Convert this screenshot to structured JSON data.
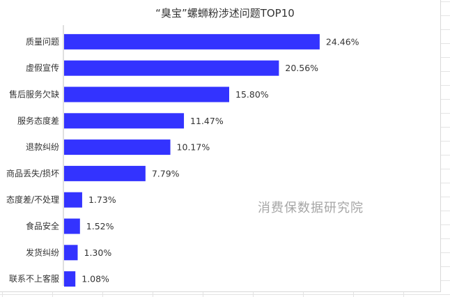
{
  "chart_data": {
    "type": "bar",
    "orientation": "horizontal",
    "title": "“臭宝”螺蛳粉涉述问题TOP10",
    "categories": [
      "质量问题",
      "虚假宣传",
      "售后服务欠缺",
      "服务态度差",
      "退款纠纷",
      "商品丢失/损坏",
      "态度差/不处理",
      "食品安全",
      "发货纠纷",
      "联系不上客服"
    ],
    "values": [
      24.46,
      20.56,
      15.8,
      11.47,
      10.17,
      7.79,
      1.73,
      1.52,
      1.3,
      1.08
    ],
    "value_labels": [
      "24.46%",
      "20.56%",
      "15.80%",
      "11.47%",
      "10.17%",
      "7.79%",
      "1.73%",
      "1.52%",
      "1.30%",
      "1.08%"
    ],
    "xlim": [
      0,
      28
    ],
    "unit": "%",
    "bar_color": "#3333ff",
    "grid": false,
    "watermark": "消费保数据研究院"
  }
}
